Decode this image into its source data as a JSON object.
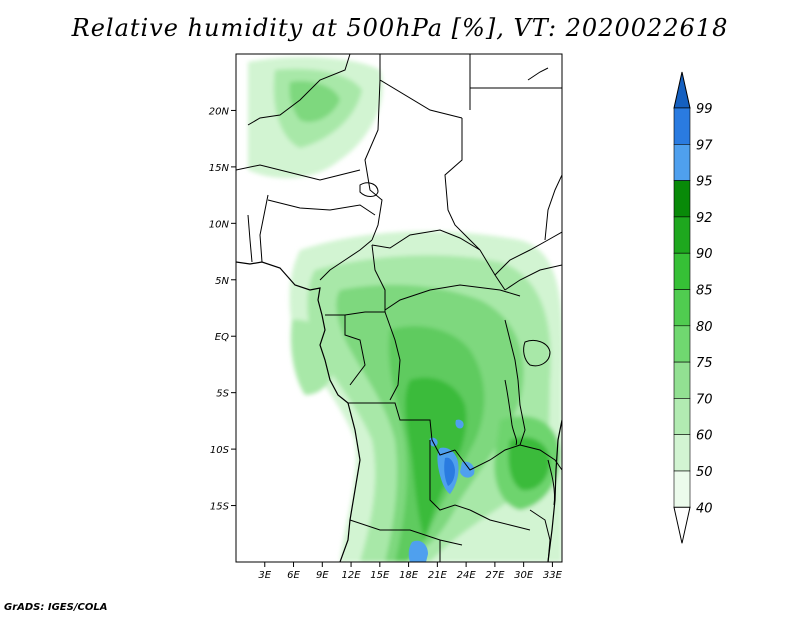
{
  "title": "Relative humidity at 500hPa [%], VT: 2020022618",
  "credit": "GrADS: IGES/COLA",
  "map": {
    "lon_range": [
      0,
      34
    ],
    "lat_range": [
      -20,
      25
    ],
    "lat_labels": [
      "20N",
      "15N",
      "10N",
      "5N",
      "EQ",
      "5S",
      "10S",
      "15S"
    ],
    "lon_labels": [
      "3E",
      "6E",
      "9E",
      "12E",
      "15E",
      "18E",
      "21E",
      "24E",
      "27E",
      "30E",
      "33E"
    ]
  },
  "colorbar": {
    "levels": [
      "99",
      "97",
      "95",
      "92",
      "90",
      "85",
      "80",
      "75",
      "70",
      "60",
      "50",
      "40"
    ],
    "colors": [
      "#1560c0",
      "#2a7be0",
      "#4fa0ee",
      "#088a08",
      "#1ea81e",
      "#36c036",
      "#50cc50",
      "#70d870",
      "#92e092",
      "#b2ebb2",
      "#d2f4d2",
      "#ecfbec"
    ]
  }
}
